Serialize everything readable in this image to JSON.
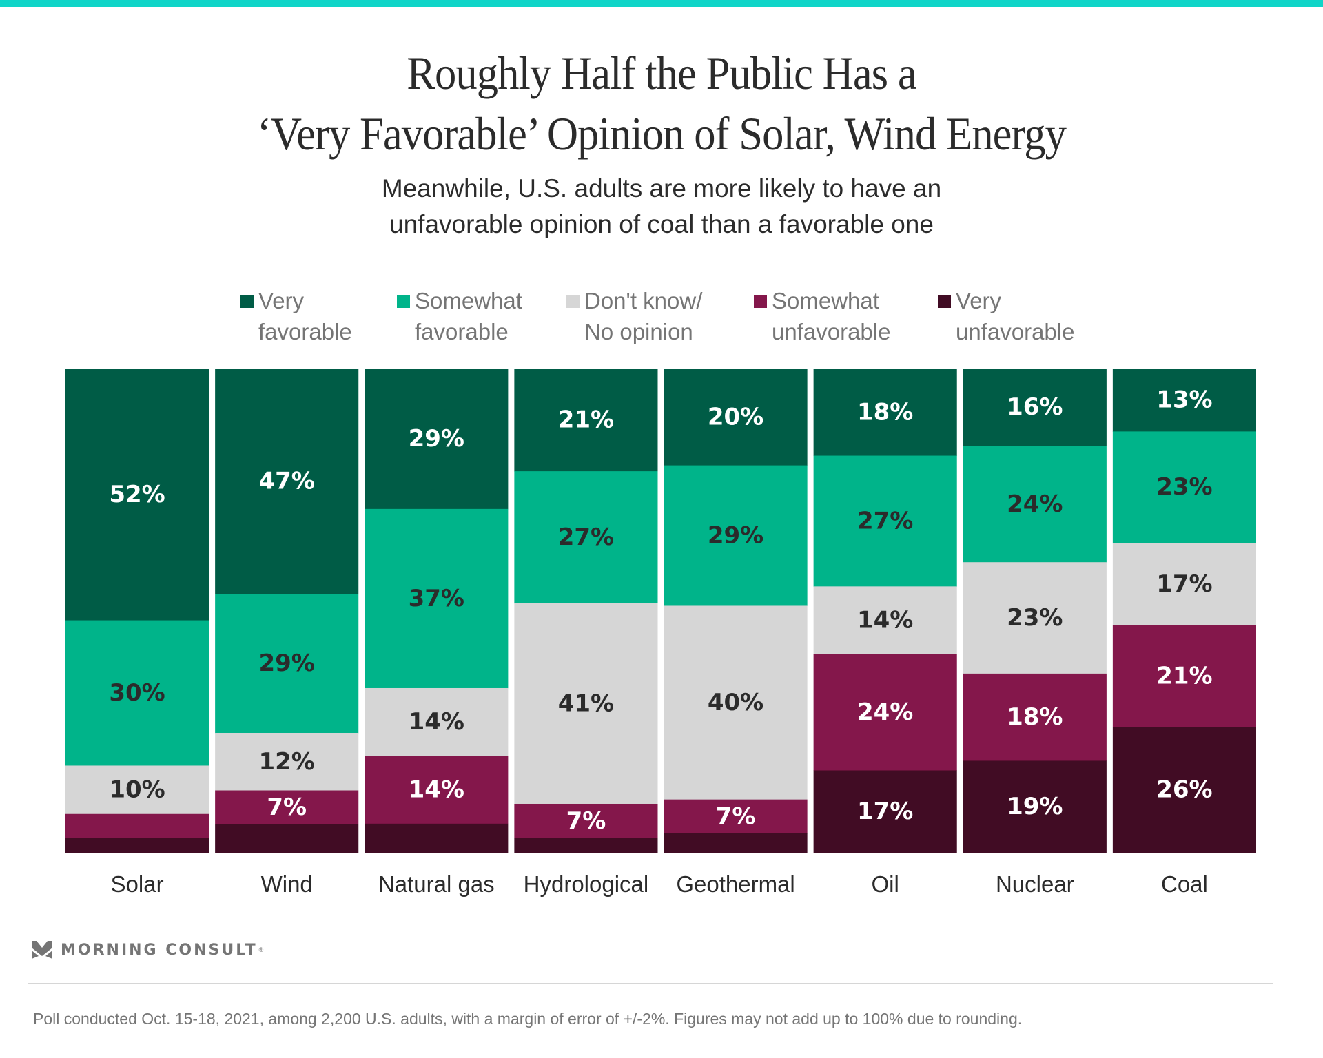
{
  "header": {
    "title_line1": "Roughly Half the Public Has a",
    "title_line2": "‘Very Favorable’ Opinion of Solar, Wind Energy",
    "subtitle_line1": "Meanwhile, U.S. adults are more likely to have an",
    "subtitle_line2": "unfavorable opinion of coal than a favorable one"
  },
  "colors": {
    "top_bar": "#10d5c8",
    "very_favorable": "#005c46",
    "somewhat_favorable": "#00b48a",
    "dont_know": "#d6d6d6",
    "somewhat_unfavorable": "#84174b",
    "very_unfavorable": "#410c24",
    "label_dark": "#2b2b2b",
    "label_light": "#ffffff"
  },
  "legend": [
    {
      "line1": "Very",
      "line2": "favorable",
      "color": "#005c46"
    },
    {
      "line1": "Somewhat",
      "line2": "favorable",
      "color": "#00b48a"
    },
    {
      "line1": "Don't know/",
      "line2": "No opinion",
      "color": "#d6d6d6"
    },
    {
      "line1": "Somewhat",
      "line2": "unfavorable",
      "color": "#84174b"
    },
    {
      "line1": "Very",
      "line2": "unfavorable",
      "color": "#410c24"
    }
  ],
  "chart_data": {
    "type": "bar",
    "stacked": true,
    "orientation": "vertical",
    "normalized": true,
    "title": "Roughly Half the Public Has a ‘Very Favorable’ Opinion of Solar, Wind Energy",
    "subtitle": "Meanwhile, U.S. adults are more likely to have an unfavorable opinion of coal than a favorable one",
    "xlabel": "",
    "ylabel": "",
    "ylim": [
      0,
      100
    ],
    "grid": false,
    "legend_position": "top",
    "categories": [
      "Solar",
      "Wind",
      "Natural gas",
      "Hydrological",
      "Geothermal",
      "Oil",
      "Nuclear",
      "Coal"
    ],
    "series": [
      {
        "name": "Very favorable",
        "color": "#005c46",
        "label_color": "#ffffff",
        "values": [
          52,
          47,
          29,
          21,
          20,
          18,
          16,
          13
        ],
        "labels": [
          "52%",
          "47%",
          "29%",
          "21%",
          "20%",
          "18%",
          "16%",
          "13%"
        ]
      },
      {
        "name": "Somewhat favorable",
        "color": "#00b48a",
        "label_color": "#2b2b2b",
        "values": [
          30,
          29,
          37,
          27,
          29,
          27,
          24,
          23
        ],
        "labels": [
          "30%",
          "29%",
          "37%",
          "27%",
          "29%",
          "27%",
          "24%",
          "23%"
        ]
      },
      {
        "name": "Don't know/No opinion",
        "color": "#d6d6d6",
        "label_color": "#2b2b2b",
        "values": [
          10,
          12,
          14,
          41,
          40,
          14,
          23,
          17
        ],
        "labels": [
          "10%",
          "12%",
          "14%",
          "41%",
          "40%",
          "14%",
          "23%",
          "17%"
        ]
      },
      {
        "name": "Somewhat unfavorable",
        "color": "#84174b",
        "label_color": "#ffffff",
        "values": [
          5,
          7,
          14,
          7,
          7,
          24,
          18,
          21
        ],
        "labels": [
          "",
          "7%",
          "14%",
          "7%",
          "7%",
          "24%",
          "18%",
          "21%"
        ]
      },
      {
        "name": "Very unfavorable",
        "color": "#410c24",
        "label_color": "#ffffff",
        "values": [
          3,
          6,
          6,
          3,
          4,
          17,
          19,
          26
        ],
        "labels": [
          "",
          "",
          "",
          "",
          "",
          "17%",
          "19%",
          "26%"
        ]
      }
    ]
  },
  "footer": {
    "brand": "MORNING CONSULT",
    "brand_mark": "®",
    "note": "Poll conducted Oct. 15-18, 2021, among 2,200 U.S. adults, with a margin of error of +/-2%. Figures may not add up to 100% due to rounding."
  }
}
